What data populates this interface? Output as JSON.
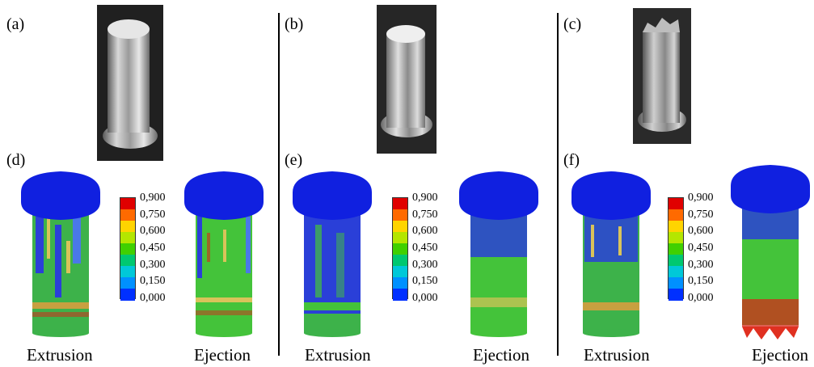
{
  "panels": {
    "a": "(a)",
    "b": "(b)",
    "c": "(c)",
    "d": "(d)",
    "e": "(e)",
    "f": "(f)"
  },
  "captions": {
    "extrusion": "Extrusion",
    "ejection": "Ejection"
  },
  "legend": {
    "ticks": [
      "0,900",
      "0,750",
      "0,600",
      "0,450",
      "0,300",
      "0,150",
      "0,000"
    ],
    "colors": [
      "#e00000",
      "#ff6a00",
      "#ffd400",
      "#b4e600",
      "#40d000",
      "#00c870",
      "#00c8d8",
      "#0090ff",
      "#0030ff"
    ]
  },
  "colors": {
    "head": "#1020e0",
    "shaft": "#44c33a",
    "low": "#2a3fd8",
    "high": "#d42a1a"
  }
}
